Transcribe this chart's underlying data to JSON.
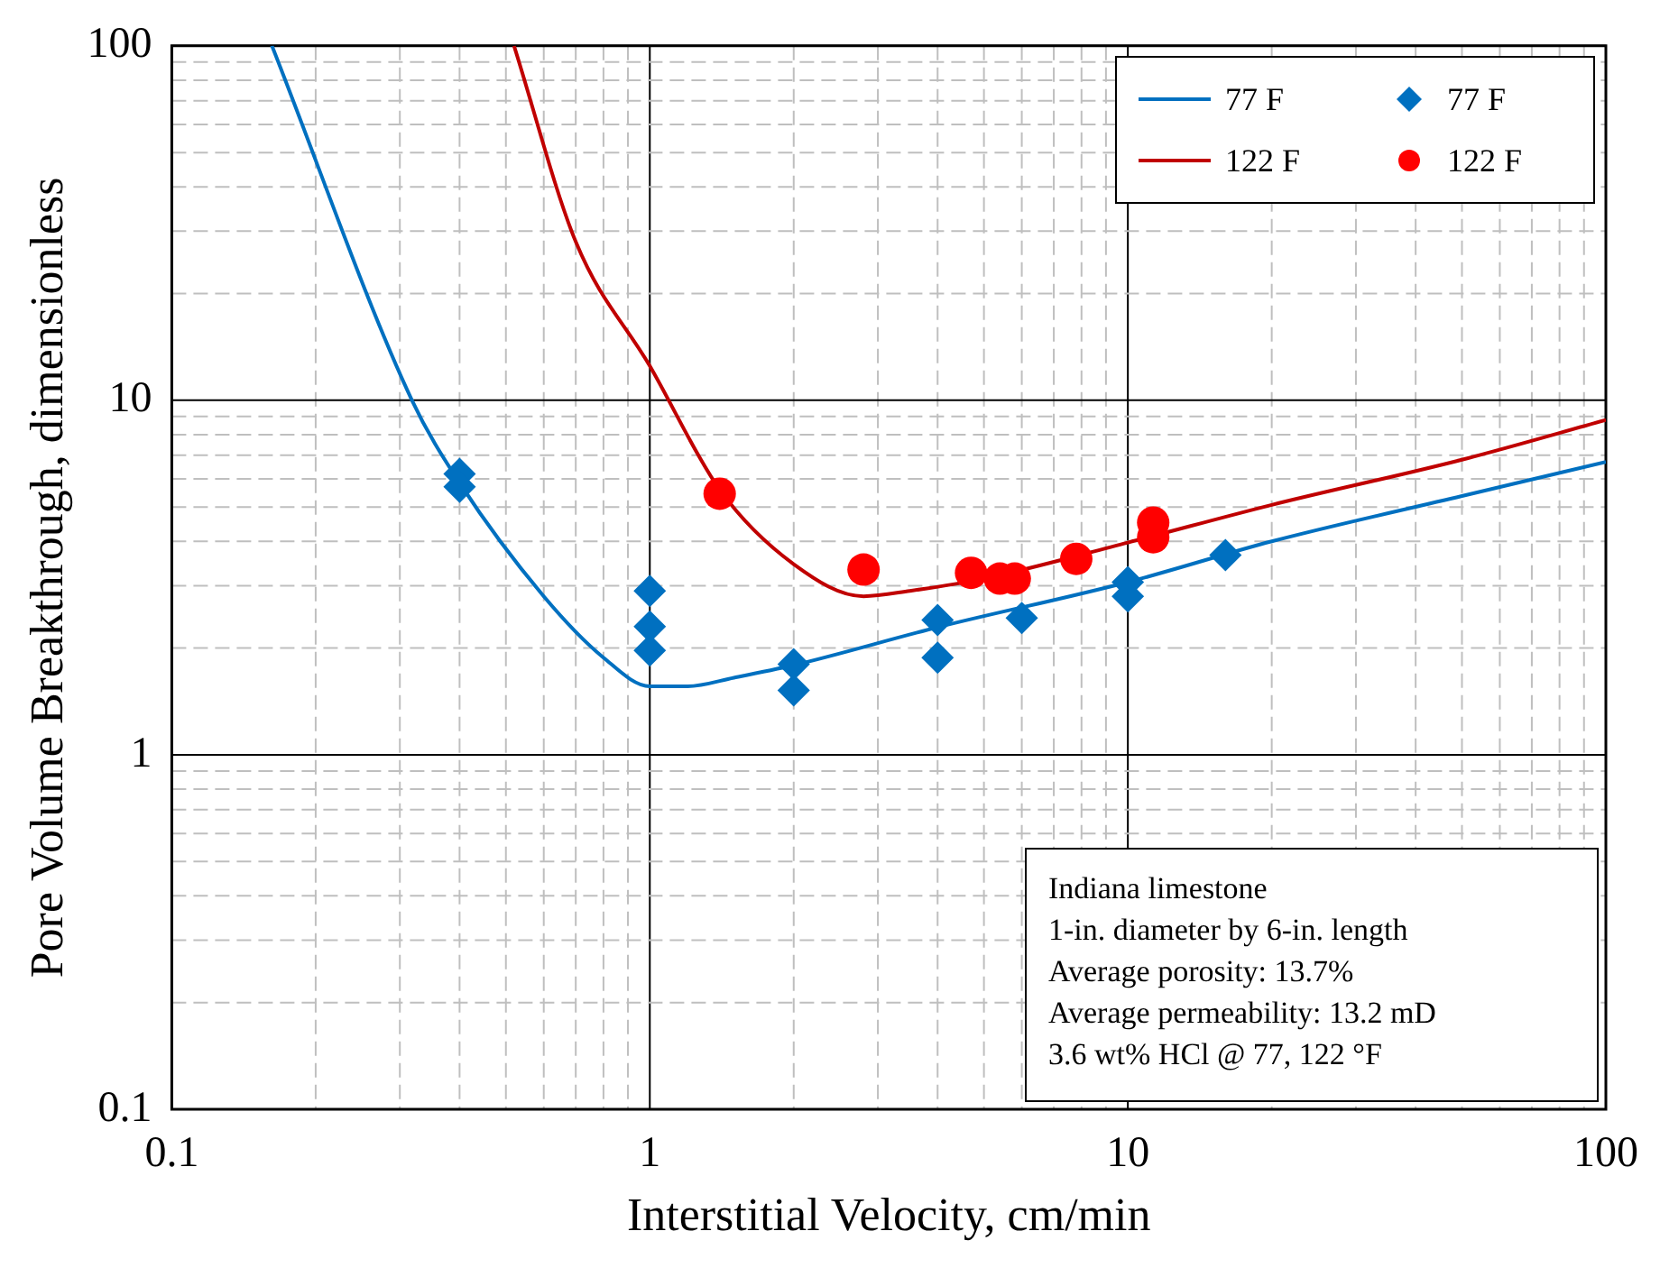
{
  "chart_data": {
    "type": "scatter",
    "xlabel": "Interstitial Velocity, cm/min",
    "ylabel": "Pore Volume Breakthrough, dimensionless",
    "log": "xy",
    "grid": true,
    "legend": "top right",
    "xlim": [
      0.1,
      100
    ],
    "xticks": [
      0.1,
      1,
      10,
      100
    ],
    "ylim": [
      0.1,
      100
    ],
    "yticks": [
      0.1,
      1,
      10,
      100
    ],
    "series": [
      {
        "name": "77 F",
        "type": "line",
        "marker": "none",
        "color": "#0070c0",
        "x": [
          0.162,
          0.318,
          0.4,
          0.6,
          0.8,
          1.0,
          1.2,
          1.5,
          2,
          4,
          10,
          20,
          50,
          100
        ],
        "values": [
          100,
          10,
          5.85,
          2.8,
          1.88,
          1.56,
          1.56,
          1.65,
          1.79,
          2.29,
          3.07,
          4.0,
          5.37,
          6.7
        ]
      },
      {
        "name": "77 F",
        "type": "scatter",
        "marker": "diamond",
        "color": "#0070c0",
        "x": [
          0.4,
          0.4,
          1,
          1,
          1,
          2,
          2,
          4,
          4,
          6,
          10,
          10,
          16
        ],
        "values": [
          6.2,
          5.7,
          2.9,
          2.3,
          1.97,
          1.8,
          1.52,
          2.4,
          1.88,
          2.43,
          3.07,
          2.8,
          3.66
        ]
      },
      {
        "name": "122 F",
        "type": "line",
        "marker": "none",
        "color": "#c00000",
        "x": [
          0.52,
          0.7,
          1.0,
          1.4,
          2,
          2.8,
          3.5,
          5,
          10,
          20,
          50,
          100
        ],
        "values": [
          100,
          28,
          12.5,
          5.6,
          3.45,
          2.8,
          2.9,
          3.14,
          3.97,
          5.07,
          6.8,
          8.8
        ]
      },
      {
        "name": "122 F",
        "type": "scatter",
        "marker": "circle",
        "color": "#ff0000",
        "x": [
          1.4,
          2.8,
          4.7,
          5.4,
          5.8,
          7.8,
          11.3,
          11.3
        ],
        "values": [
          5.45,
          3.33,
          3.26,
          3.14,
          3.14,
          3.57,
          4.11,
          4.52
        ]
      }
    ],
    "annotations": [
      "Indiana limestone",
      "1-in. diameter by 6-in. length",
      "Average porosity: 13.7%",
      "Average permeability: 13.2 mD",
      "3.6 wt% HCl @ 77, 122 °F"
    ]
  }
}
